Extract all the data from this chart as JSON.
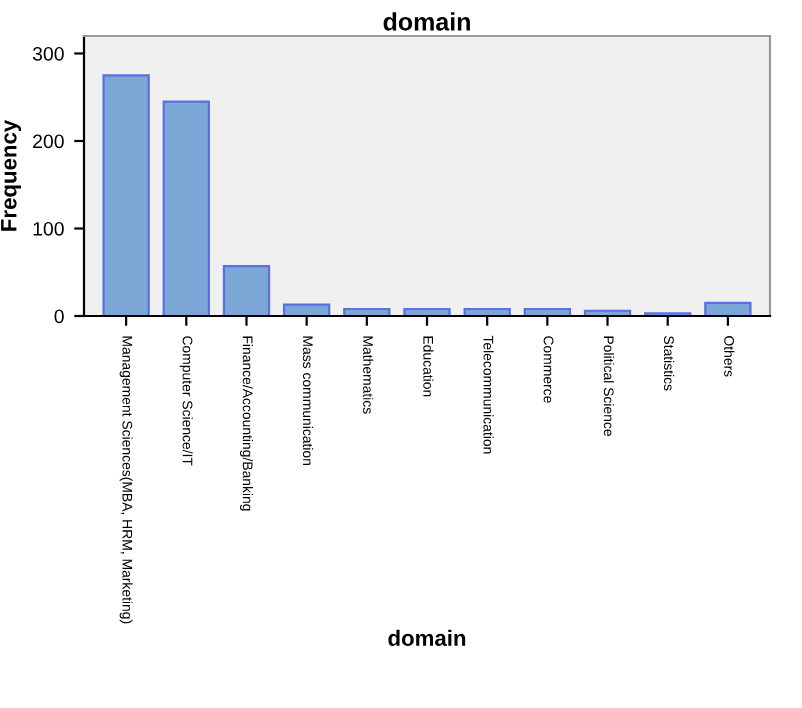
{
  "chart_data": {
    "type": "bar",
    "title": "domain",
    "xlabel": "domain",
    "ylabel": "Frequency",
    "categories": [
      "Management Sciences(MBA, HRM, Marketing)",
      "Computer Science/IT",
      "Finance/Accounting/Banking",
      "Mass communication",
      "Mathematics",
      "Education",
      "Telecommunication",
      "Commerce",
      "Political Science",
      "Statistics",
      "Others"
    ],
    "values": [
      275,
      245,
      57,
      13,
      8,
      8,
      8,
      8,
      6,
      3,
      15
    ],
    "color": "#7ba7d6",
    "ylim": [
      0,
      320
    ],
    "yticks": [
      0,
      100,
      200,
      300
    ],
    "grid": false
  }
}
